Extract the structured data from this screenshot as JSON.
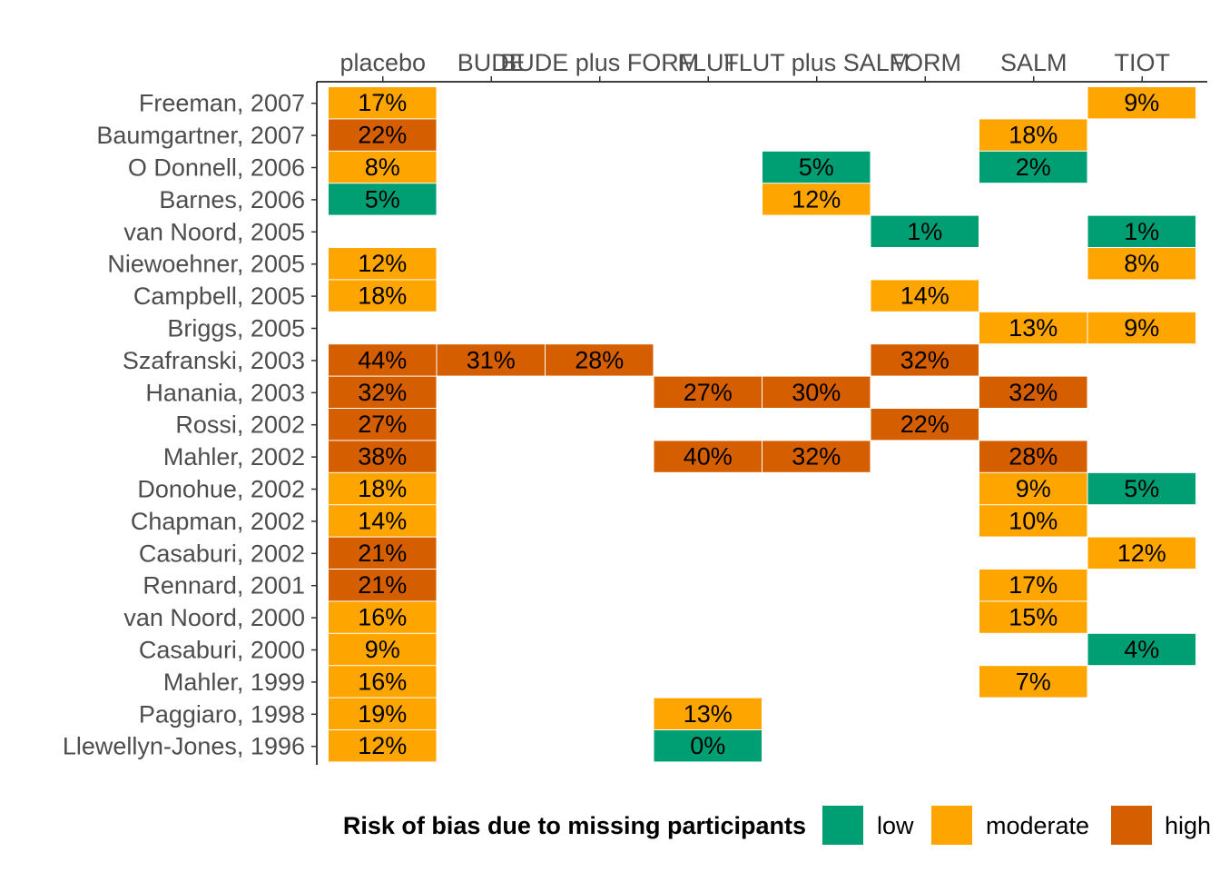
{
  "chart_data": {
    "type": "heatmap",
    "title": "",
    "xlabel": "",
    "ylabel": "",
    "columns": [
      "placebo",
      "BUDE",
      "BUDE plus FORM",
      "FLUT",
      "FLUT plus SALM",
      "FORM",
      "SALM",
      "TIOT"
    ],
    "rows": [
      "Freeman, 2007",
      "Baumgartner, 2007",
      "O Donnell, 2006",
      "Barnes, 2006",
      "van Noord, 2005",
      "Niewoehner, 2005",
      "Campbell, 2005",
      "Briggs, 2005",
      "Szafranski, 2003",
      "Hanania, 2003",
      "Rossi, 2002",
      "Mahler, 2002",
      "Donohue, 2002",
      "Chapman, 2002",
      "Casaburi, 2002",
      "Rennard, 2001",
      "van Noord, 2000",
      "Casaburi, 2000",
      "Mahler, 1999",
      "Paggiaro, 1998",
      "Llewellyn-Jones, 1996"
    ],
    "cells": [
      {
        "row": "Freeman, 2007",
        "col": "placebo",
        "value": 17,
        "label": "17%",
        "risk": "moderate"
      },
      {
        "row": "Freeman, 2007",
        "col": "TIOT",
        "value": 9,
        "label": "9%",
        "risk": "moderate"
      },
      {
        "row": "Baumgartner, 2007",
        "col": "placebo",
        "value": 22,
        "label": "22%",
        "risk": "high"
      },
      {
        "row": "Baumgartner, 2007",
        "col": "SALM",
        "value": 18,
        "label": "18%",
        "risk": "moderate"
      },
      {
        "row": "O Donnell, 2006",
        "col": "placebo",
        "value": 8,
        "label": "8%",
        "risk": "moderate"
      },
      {
        "row": "O Donnell, 2006",
        "col": "FLUT plus SALM",
        "value": 5,
        "label": "5%",
        "risk": "low"
      },
      {
        "row": "O Donnell, 2006",
        "col": "SALM",
        "value": 2,
        "label": "2%",
        "risk": "low"
      },
      {
        "row": "Barnes, 2006",
        "col": "placebo",
        "value": 5,
        "label": "5%",
        "risk": "low"
      },
      {
        "row": "Barnes, 2006",
        "col": "FLUT plus SALM",
        "value": 12,
        "label": "12%",
        "risk": "moderate"
      },
      {
        "row": "van Noord, 2005",
        "col": "FORM",
        "value": 1,
        "label": "1%",
        "risk": "low"
      },
      {
        "row": "van Noord, 2005",
        "col": "TIOT",
        "value": 1,
        "label": "1%",
        "risk": "low"
      },
      {
        "row": "Niewoehner, 2005",
        "col": "placebo",
        "value": 12,
        "label": "12%",
        "risk": "moderate"
      },
      {
        "row": "Niewoehner, 2005",
        "col": "TIOT",
        "value": 8,
        "label": "8%",
        "risk": "moderate"
      },
      {
        "row": "Campbell, 2005",
        "col": "placebo",
        "value": 18,
        "label": "18%",
        "risk": "moderate"
      },
      {
        "row": "Campbell, 2005",
        "col": "FORM",
        "value": 14,
        "label": "14%",
        "risk": "moderate"
      },
      {
        "row": "Briggs, 2005",
        "col": "SALM",
        "value": 13,
        "label": "13%",
        "risk": "moderate"
      },
      {
        "row": "Briggs, 2005",
        "col": "TIOT",
        "value": 9,
        "label": "9%",
        "risk": "moderate"
      },
      {
        "row": "Szafranski, 2003",
        "col": "placebo",
        "value": 44,
        "label": "44%",
        "risk": "high"
      },
      {
        "row": "Szafranski, 2003",
        "col": "BUDE",
        "value": 31,
        "label": "31%",
        "risk": "high"
      },
      {
        "row": "Szafranski, 2003",
        "col": "BUDE plus FORM",
        "value": 28,
        "label": "28%",
        "risk": "high"
      },
      {
        "row": "Szafranski, 2003",
        "col": "FORM",
        "value": 32,
        "label": "32%",
        "risk": "high"
      },
      {
        "row": "Hanania, 2003",
        "col": "placebo",
        "value": 32,
        "label": "32%",
        "risk": "high"
      },
      {
        "row": "Hanania, 2003",
        "col": "FLUT",
        "value": 27,
        "label": "27%",
        "risk": "high"
      },
      {
        "row": "Hanania, 2003",
        "col": "FLUT plus SALM",
        "value": 30,
        "label": "30%",
        "risk": "high"
      },
      {
        "row": "Hanania, 2003",
        "col": "SALM",
        "value": 32,
        "label": "32%",
        "risk": "high"
      },
      {
        "row": "Rossi, 2002",
        "col": "placebo",
        "value": 27,
        "label": "27%",
        "risk": "high"
      },
      {
        "row": "Rossi, 2002",
        "col": "FORM",
        "value": 22,
        "label": "22%",
        "risk": "high"
      },
      {
        "row": "Mahler, 2002",
        "col": "placebo",
        "value": 38,
        "label": "38%",
        "risk": "high"
      },
      {
        "row": "Mahler, 2002",
        "col": "FLUT",
        "value": 40,
        "label": "40%",
        "risk": "high"
      },
      {
        "row": "Mahler, 2002",
        "col": "FLUT plus SALM",
        "value": 32,
        "label": "32%",
        "risk": "high"
      },
      {
        "row": "Mahler, 2002",
        "col": "SALM",
        "value": 28,
        "label": "28%",
        "risk": "high"
      },
      {
        "row": "Donohue, 2002",
        "col": "placebo",
        "value": 18,
        "label": "18%",
        "risk": "moderate"
      },
      {
        "row": "Donohue, 2002",
        "col": "SALM",
        "value": 9,
        "label": "9%",
        "risk": "moderate"
      },
      {
        "row": "Donohue, 2002",
        "col": "TIOT",
        "value": 5,
        "label": "5%",
        "risk": "low"
      },
      {
        "row": "Chapman, 2002",
        "col": "placebo",
        "value": 14,
        "label": "14%",
        "risk": "moderate"
      },
      {
        "row": "Chapman, 2002",
        "col": "SALM",
        "value": 10,
        "label": "10%",
        "risk": "moderate"
      },
      {
        "row": "Casaburi, 2002",
        "col": "placebo",
        "value": 21,
        "label": "21%",
        "risk": "high"
      },
      {
        "row": "Casaburi, 2002",
        "col": "TIOT",
        "value": 12,
        "label": "12%",
        "risk": "moderate"
      },
      {
        "row": "Rennard, 2001",
        "col": "placebo",
        "value": 21,
        "label": "21%",
        "risk": "high"
      },
      {
        "row": "Rennard, 2001",
        "col": "SALM",
        "value": 17,
        "label": "17%",
        "risk": "moderate"
      },
      {
        "row": "van Noord, 2000",
        "col": "placebo",
        "value": 16,
        "label": "16%",
        "risk": "moderate"
      },
      {
        "row": "van Noord, 2000",
        "col": "SALM",
        "value": 15,
        "label": "15%",
        "risk": "moderate"
      },
      {
        "row": "Casaburi, 2000",
        "col": "placebo",
        "value": 9,
        "label": "9%",
        "risk": "moderate"
      },
      {
        "row": "Casaburi, 2000",
        "col": "TIOT",
        "value": 4,
        "label": "4%",
        "risk": "low"
      },
      {
        "row": "Mahler, 1999",
        "col": "placebo",
        "value": 16,
        "label": "16%",
        "risk": "moderate"
      },
      {
        "row": "Mahler, 1999",
        "col": "SALM",
        "value": 7,
        "label": "7%",
        "risk": "moderate"
      },
      {
        "row": "Paggiaro, 1998",
        "col": "placebo",
        "value": 19,
        "label": "19%",
        "risk": "moderate"
      },
      {
        "row": "Paggiaro, 1998",
        "col": "FLUT",
        "value": 13,
        "label": "13%",
        "risk": "moderate"
      },
      {
        "row": "Llewellyn-Jones, 1996",
        "col": "placebo",
        "value": 12,
        "label": "12%",
        "risk": "moderate"
      },
      {
        "row": "Llewellyn-Jones, 1996",
        "col": "FLUT",
        "value": 0,
        "label": "0%",
        "risk": "low"
      }
    ],
    "legend": {
      "title": "Risk of bias due to missing participants",
      "position": "bottom",
      "items": [
        {
          "key": "low",
          "label": "low",
          "color": "#009E73"
        },
        {
          "key": "moderate",
          "label": "moderate",
          "color": "#FFA500"
        },
        {
          "key": "high",
          "label": "high",
          "color": "#D55E00"
        }
      ]
    },
    "x_axis_position": "top",
    "grid": false
  }
}
